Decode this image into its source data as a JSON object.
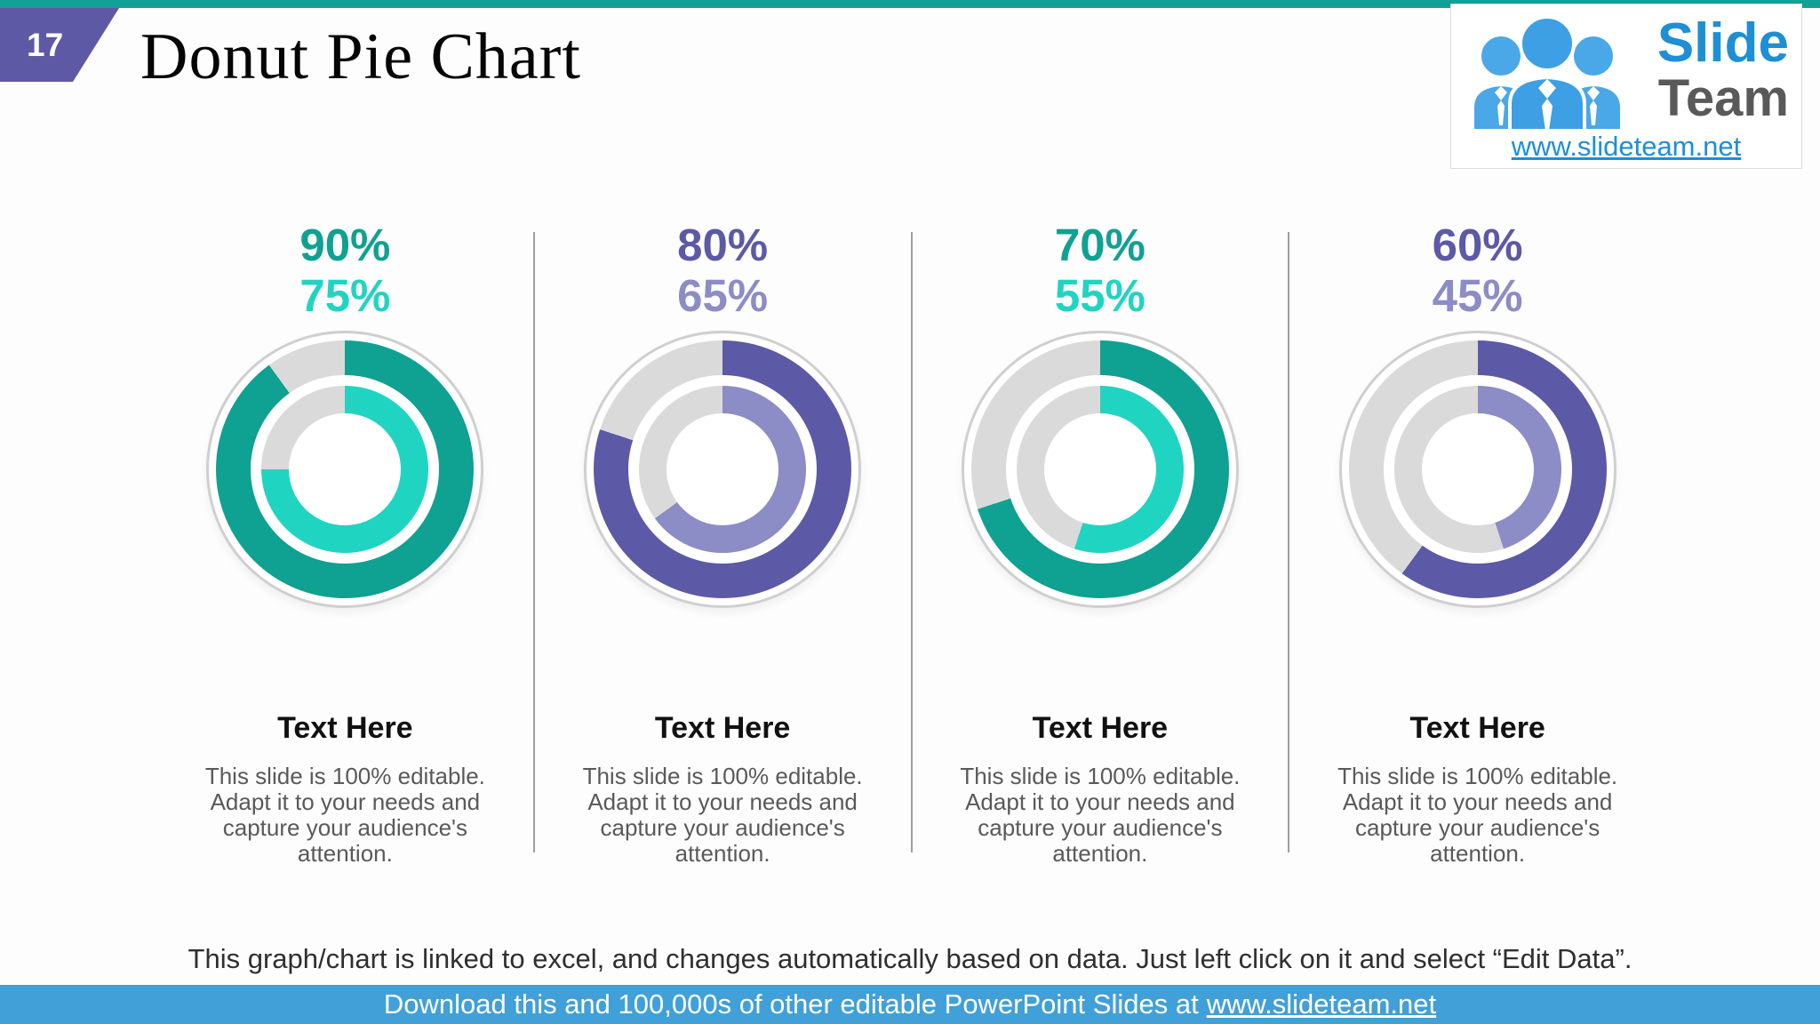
{
  "slide": {
    "page_number": "17",
    "title": "Donut Pie Chart",
    "footer_note": "This graph/chart is linked to excel, and changes automatically based on data. Just left click on it and select “Edit Data”.",
    "download_bar": {
      "text_before": "Download this and 100,000s of other editable PowerPoint Slides at",
      "link": "www.slideteam.net"
    }
  },
  "logo": {
    "brand_top": "Slide",
    "brand_bottom": "Team",
    "url": "www.slideteam.net"
  },
  "colors": {
    "top_bar_teal": "#13A096",
    "page_tab_purple": "#5E59A4",
    "teal_dark": "#0FA191",
    "teal_bright": "#20D4C2",
    "purple_dark": "#5C59A6",
    "purple_light": "#8C8CC6",
    "ring_remainder_gray": "#DADADA",
    "divider_gray": "#9E9E9E",
    "footer_bar_blue": "#41A0D8",
    "link_blue": "#1E8FD5",
    "body_text_gray": "#595959"
  },
  "chart_data": [
    {
      "type": "pie",
      "subtype": "double_ring_donut",
      "start_angle_deg": 0,
      "direction": "clockwise",
      "remainder_color": "#DADADA",
      "series": [
        {
          "name": "outer ring",
          "value": 90,
          "color": "#0FA191"
        },
        {
          "name": "inner ring",
          "value": 75,
          "color": "#20D4C2"
        }
      ]
    },
    {
      "type": "pie",
      "subtype": "double_ring_donut",
      "start_angle_deg": 0,
      "direction": "clockwise",
      "remainder_color": "#DADADA",
      "series": [
        {
          "name": "outer ring",
          "value": 80,
          "color": "#5C59A6"
        },
        {
          "name": "inner ring",
          "value": 65,
          "color": "#8C8CC6"
        }
      ]
    },
    {
      "type": "pie",
      "subtype": "double_ring_donut",
      "start_angle_deg": 0,
      "direction": "clockwise",
      "remainder_color": "#DADADA",
      "series": [
        {
          "name": "outer ring",
          "value": 70,
          "color": "#0FA191"
        },
        {
          "name": "inner ring",
          "value": 55,
          "color": "#20D4C2"
        }
      ]
    },
    {
      "type": "pie",
      "subtype": "double_ring_donut",
      "start_angle_deg": 0,
      "direction": "clockwise",
      "remainder_color": "#DADADA",
      "series": [
        {
          "name": "outer ring",
          "value": 60,
          "color": "#5C59A6"
        },
        {
          "name": "inner ring",
          "value": 45,
          "color": "#8C8CC6"
        }
      ]
    }
  ],
  "panels": [
    {
      "value_primary": "90%",
      "value_secondary": "75%",
      "title": "Text Here",
      "description_lines": [
        "This slide is 100% editable.",
        "Adapt it to your needs and",
        "capture your audience's",
        "attention."
      ]
    },
    {
      "value_primary": "80%",
      "value_secondary": "65%",
      "title": "Text Here",
      "description_lines": [
        "This slide is 100% editable.",
        "Adapt it to your needs and",
        "capture your audience's",
        "attention."
      ]
    },
    {
      "value_primary": "70%",
      "value_secondary": "55%",
      "title": "Text Here",
      "description_lines": [
        "This slide is 100% editable.",
        "Adapt it to your needs and",
        "capture your audience's",
        "attention."
      ]
    },
    {
      "value_primary": "60%",
      "value_secondary": "45%",
      "title": "Text Here",
      "description_lines": [
        "This slide is 100% editable.",
        "Adapt it to your needs and",
        "capture your audience's",
        "attention."
      ]
    }
  ]
}
